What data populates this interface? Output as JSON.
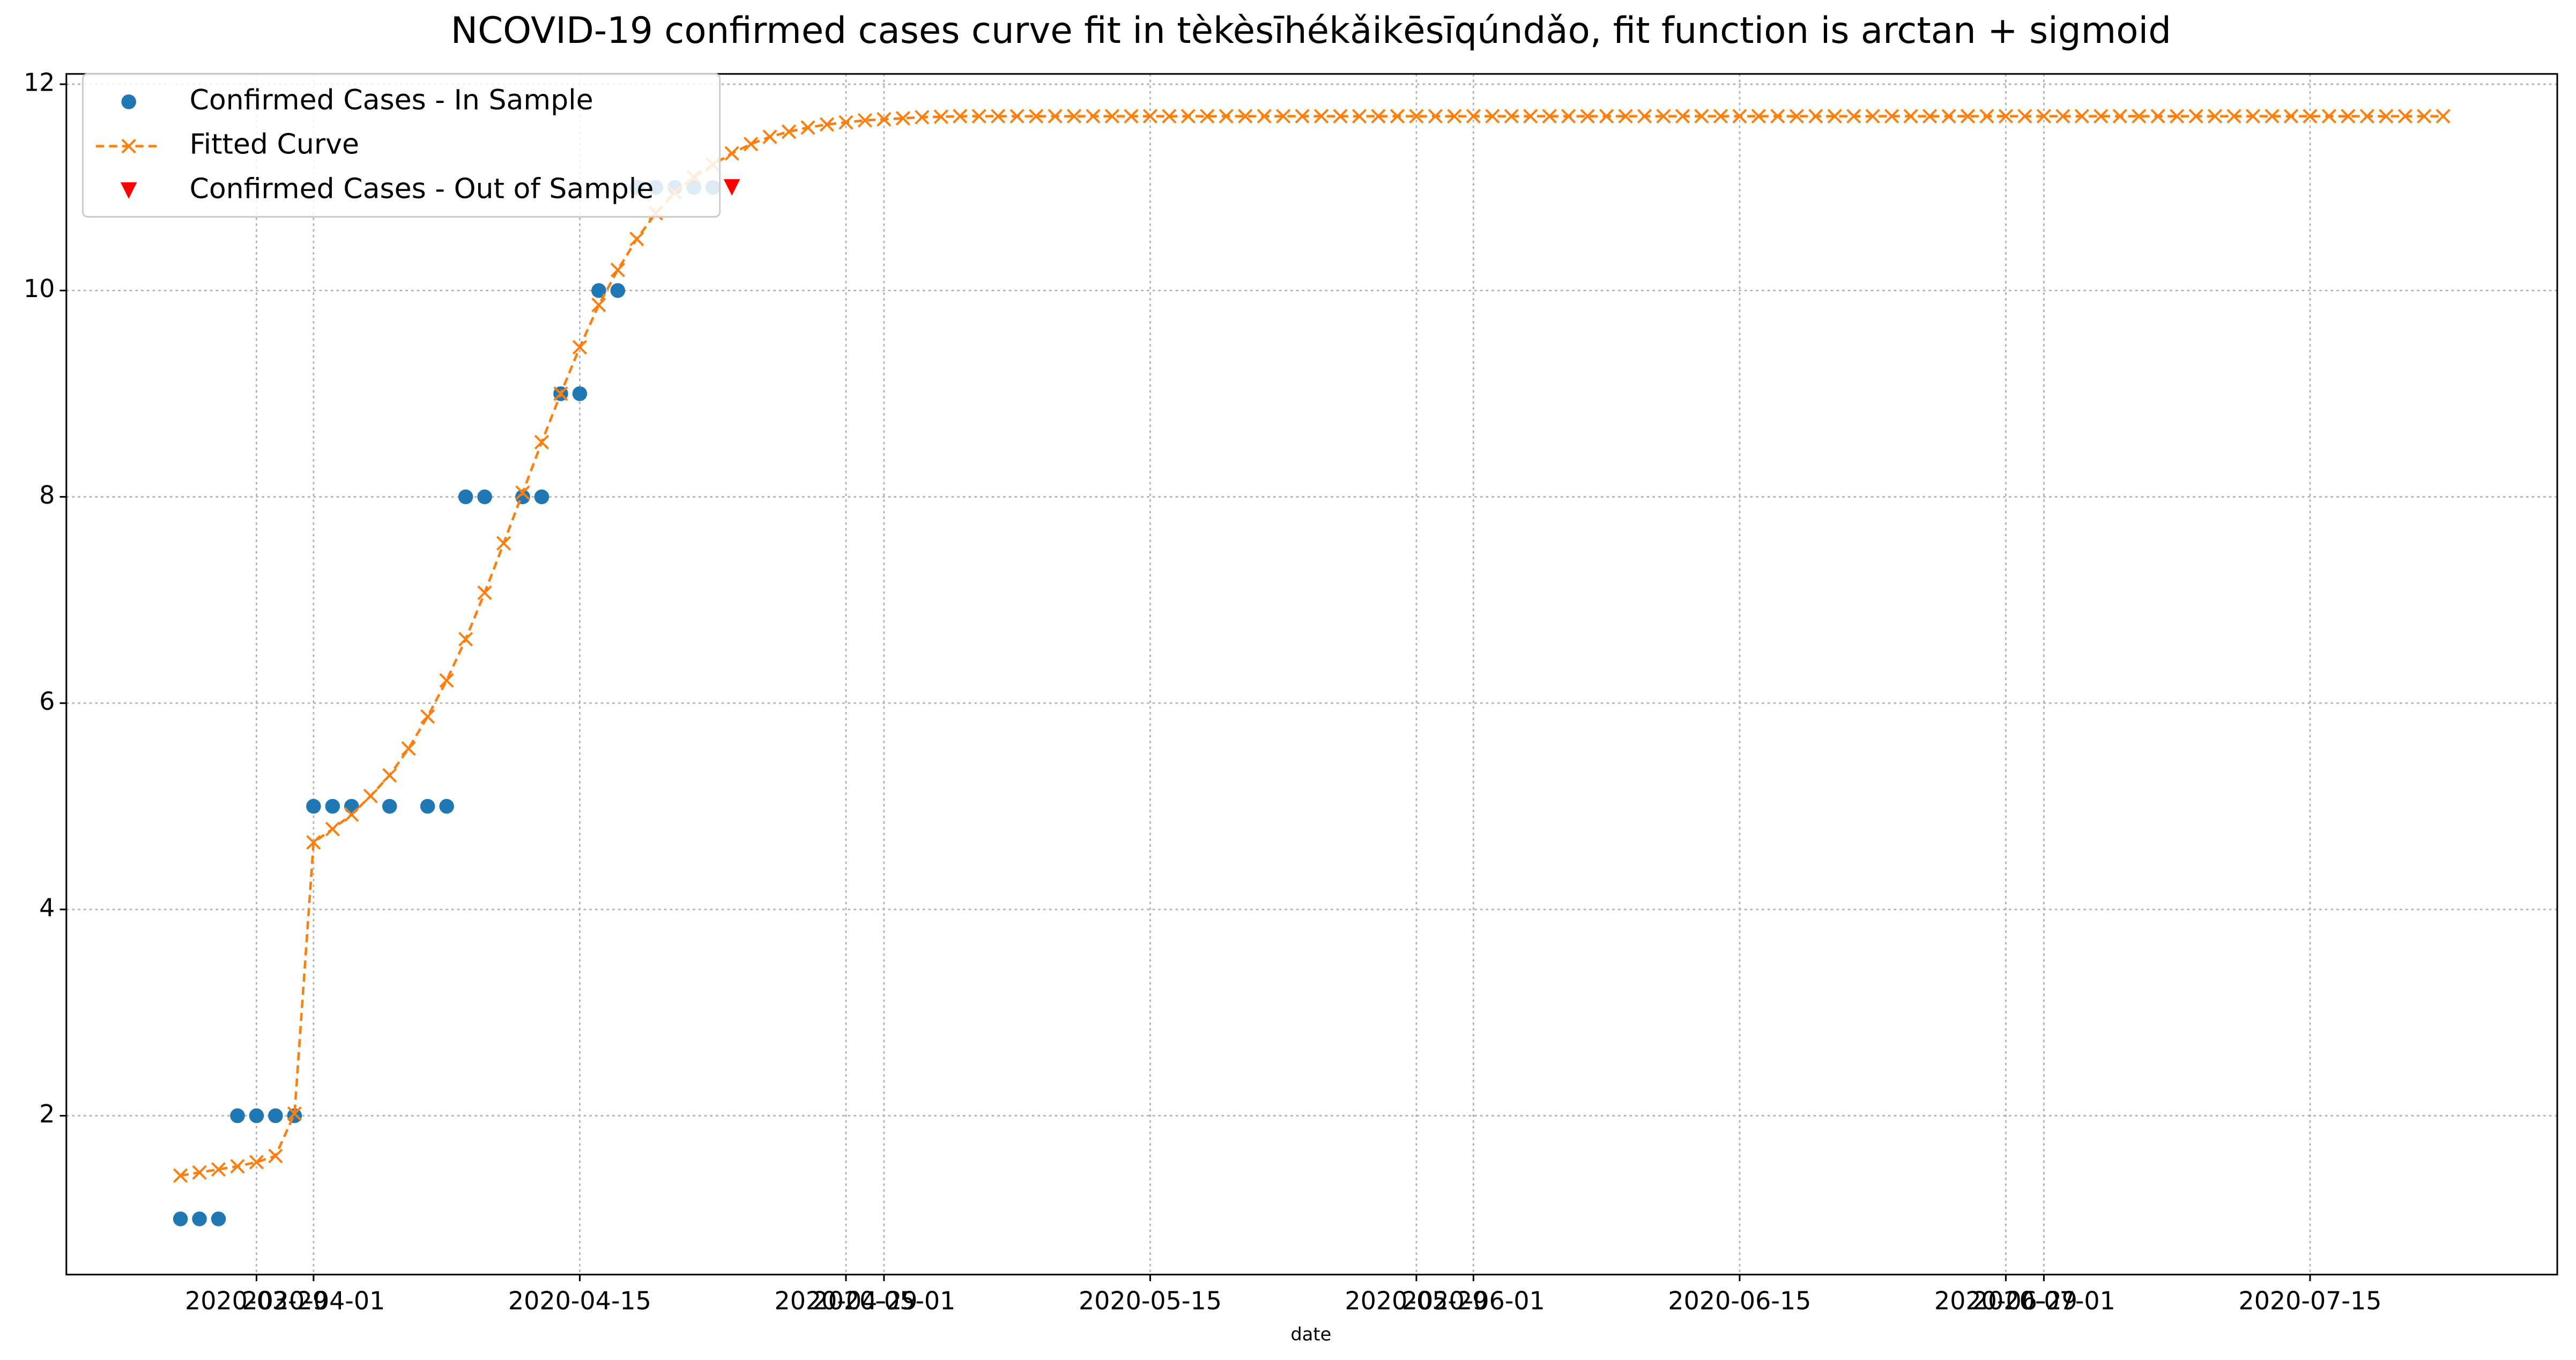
{
  "chart_data": {
    "type": "line",
    "title": "NCOVID-19 confirmed cases curve fit in tèkèsīhékǎikēsīqúndǎo, fit function is arctan + sigmoid",
    "x_label": "date",
    "xlim": [
      "2020-03-19",
      "2020-07-28"
    ],
    "ylim": [
      0.46,
      12.1
    ],
    "xticks": [
      "2020-03-29",
      "2020-04-01",
      "2020-04-15",
      "2020-04-29",
      "2020-05-01",
      "2020-05-15",
      "2020-05-29",
      "2020-06-01",
      "2020-06-15",
      "2020-06-29",
      "2020-07-01",
      "2020-07-15"
    ],
    "yticks": [
      2,
      4,
      6,
      8,
      10,
      12
    ],
    "grid": true,
    "legend": "upper left",
    "series": [
      {
        "name": "Confirmed Cases - In Sample",
        "color": "#1f77b4",
        "marker": "circle",
        "x": [
          "2020-03-25",
          "2020-03-26",
          "2020-03-27",
          "2020-03-28",
          "2020-03-29",
          "2020-03-30",
          "2020-03-31",
          "2020-04-01",
          "2020-04-02",
          "2020-04-03",
          "2020-04-05",
          "2020-04-07",
          "2020-04-08",
          "2020-04-09",
          "2020-04-10",
          "2020-04-12",
          "2020-04-13",
          "2020-04-14",
          "2020-04-15",
          "2020-04-16",
          "2020-04-17",
          "2020-04-18",
          "2020-04-19",
          "2020-04-20",
          "2020-04-21",
          "2020-04-22"
        ],
        "values": [
          1,
          1,
          1,
          2,
          2,
          2,
          2,
          5,
          5,
          5,
          5,
          5,
          5,
          8,
          8,
          8,
          8,
          9,
          9,
          10,
          10,
          11,
          11,
          11,
          11,
          11
        ]
      },
      {
        "name": "Fitted Curve",
        "color": "#ff7f0e",
        "marker": "x",
        "dashed": true,
        "x": [
          "2020-03-25",
          "2020-03-26",
          "2020-03-27",
          "2020-03-28",
          "2020-03-29",
          "2020-03-30",
          "2020-03-31",
          "2020-04-01",
          "2020-04-02",
          "2020-04-03",
          "2020-04-04",
          "2020-04-05",
          "2020-04-06",
          "2020-04-07",
          "2020-04-08",
          "2020-04-09",
          "2020-04-10",
          "2020-04-11",
          "2020-04-12",
          "2020-04-13",
          "2020-04-14",
          "2020-04-15",
          "2020-04-16",
          "2020-04-17",
          "2020-04-18",
          "2020-04-19",
          "2020-04-20",
          "2020-04-21",
          "2020-04-22",
          "2020-04-23",
          "2020-04-24",
          "2020-04-25",
          "2020-04-26",
          "2020-04-27",
          "2020-04-28",
          "2020-04-29",
          "2020-04-30",
          "2020-05-01",
          "2020-05-02",
          "2020-05-03",
          "2020-05-04",
          "2020-05-05",
          "2020-05-06",
          "2020-05-07",
          "2020-05-08",
          "2020-05-09",
          "2020-05-10",
          "2020-05-11",
          "2020-05-12",
          "2020-05-13",
          "2020-05-14",
          "2020-05-15",
          "2020-05-16",
          "2020-05-17",
          "2020-05-18",
          "2020-05-19",
          "2020-05-20",
          "2020-05-21",
          "2020-05-22",
          "2020-05-23",
          "2020-05-24",
          "2020-05-25",
          "2020-05-26",
          "2020-05-27",
          "2020-05-28",
          "2020-05-29",
          "2020-05-30",
          "2020-05-31",
          "2020-06-01",
          "2020-06-02",
          "2020-06-03",
          "2020-06-04",
          "2020-06-05",
          "2020-06-06",
          "2020-06-07",
          "2020-06-08",
          "2020-06-09",
          "2020-06-10",
          "2020-06-11",
          "2020-06-12",
          "2020-06-13",
          "2020-06-14",
          "2020-06-15",
          "2020-06-16",
          "2020-06-17",
          "2020-06-18",
          "2020-06-19",
          "2020-06-20",
          "2020-06-21",
          "2020-06-22",
          "2020-06-23",
          "2020-06-24",
          "2020-06-25",
          "2020-06-26",
          "2020-06-27",
          "2020-06-28",
          "2020-06-29",
          "2020-06-30",
          "2020-07-01",
          "2020-07-02",
          "2020-07-03",
          "2020-07-04",
          "2020-07-05",
          "2020-07-06",
          "2020-07-07",
          "2020-07-08",
          "2020-07-09",
          "2020-07-10",
          "2020-07-11",
          "2020-07-12",
          "2020-07-13",
          "2020-07-14",
          "2020-07-15",
          "2020-07-16",
          "2020-07-17",
          "2020-07-18",
          "2020-07-19",
          "2020-07-20",
          "2020-07-21",
          "2020-07-22"
        ],
        "values": [
          1.42,
          1.45,
          1.48,
          1.51,
          1.55,
          1.61,
          2.02,
          4.65,
          4.78,
          4.92,
          5.1,
          5.3,
          5.56,
          5.87,
          6.22,
          6.62,
          7.07,
          7.55,
          8.04,
          8.53,
          9.0,
          9.45,
          9.86,
          10.2,
          10.5,
          10.75,
          10.95,
          11.1,
          11.22,
          11.33,
          11.42,
          11.49,
          11.54,
          11.58,
          11.61,
          11.63,
          11.65,
          11.66,
          11.67,
          11.68,
          11.685,
          11.69,
          11.69,
          11.69,
          11.69,
          11.69,
          11.69,
          11.69,
          11.69,
          11.69,
          11.69,
          11.69,
          11.69,
          11.69,
          11.69,
          11.69,
          11.69,
          11.69,
          11.69,
          11.69,
          11.69,
          11.69,
          11.69,
          11.69,
          11.69,
          11.69,
          11.69,
          11.69,
          11.69,
          11.69,
          11.69,
          11.69,
          11.69,
          11.69,
          11.69,
          11.69,
          11.69,
          11.69,
          11.69,
          11.69,
          11.69,
          11.69,
          11.69,
          11.69,
          11.69,
          11.69,
          11.69,
          11.69,
          11.69,
          11.69,
          11.69,
          11.69,
          11.69,
          11.69,
          11.69,
          11.69,
          11.69,
          11.69,
          11.69,
          11.69,
          11.69,
          11.69,
          11.69,
          11.69,
          11.69,
          11.69,
          11.69,
          11.69,
          11.69,
          11.69,
          11.69,
          11.69,
          11.69,
          11.69,
          11.69,
          11.69,
          11.69,
          11.69,
          11.69,
          11.69
        ]
      },
      {
        "name": "Confirmed Cases - Out of Sample",
        "color": "#ff0000",
        "marker": "triangle-down",
        "x": [
          "2020-04-23"
        ],
        "values": [
          11
        ]
      }
    ]
  }
}
